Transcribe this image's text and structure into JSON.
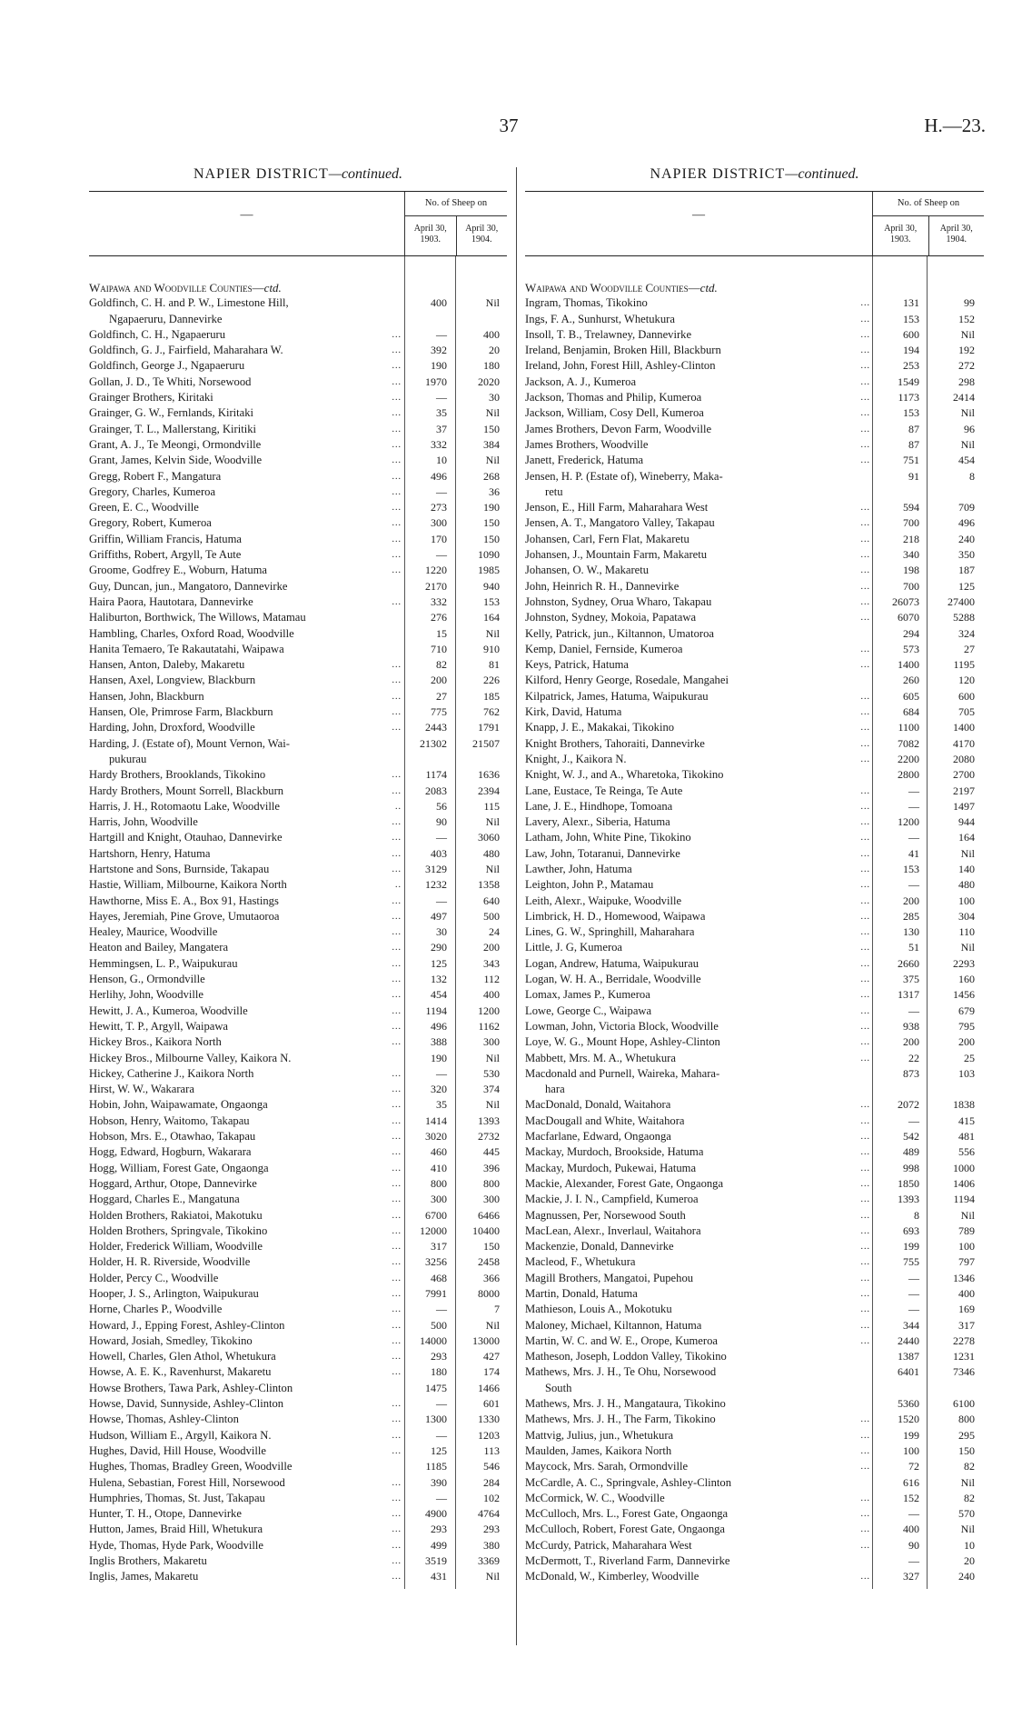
{
  "page_number": "37",
  "report_ref": "H.—23.",
  "columns": [
    {
      "title": "NAPIER DISTRICT",
      "title_suffix": "—continued.",
      "header": {
        "blank": "—",
        "group": "No. of Sheep on",
        "col1": "April 30, 1903.",
        "col2": "April 30, 1904."
      },
      "section": {
        "label": "Waipawa and Woodville Counties—",
        "suffix": "ctd."
      },
      "rows": [
        [
          "Goldfinch, C. H. and P. W., Limestone Hill,",
          "400",
          "Nil",
          "",
          "Ngapaeruru, Dannevirke"
        ],
        [
          "Goldfinch, C. H., Ngapaeruru",
          "—",
          "400",
          "..."
        ],
        [
          "Goldfinch, G. J., Fairfield, Maharahara W.",
          "392",
          "20",
          "..."
        ],
        [
          "Goldfinch, George J., Ngapaeruru",
          "190",
          "180",
          "..."
        ],
        [
          "Gollan, J. D., Te Whiti, Norsewood",
          "1970",
          "2020",
          "..."
        ],
        [
          "Grainger Brothers, Kiritaki",
          "—",
          "30",
          "..."
        ],
        [
          "Grainger, G. W., Fernlands, Kiritaki",
          "35",
          "Nil",
          "..."
        ],
        [
          "Grainger, T. L., Mallerstang, Kiritiki",
          "37",
          "150",
          "..."
        ],
        [
          "Grant, A. J., Te Meongi, Ormondville",
          "332",
          "384",
          "..."
        ],
        [
          "Grant, James, Kelvin Side, Woodville",
          "10",
          "Nil",
          "..."
        ],
        [
          "Gregg, Robert F., Mangatura",
          "496",
          "268",
          "..."
        ],
        [
          "Gregory, Charles, Kumeroa",
          "—",
          "36",
          "..."
        ],
        [
          "Green, E. C., Woodville",
          "273",
          "190",
          "..."
        ],
        [
          "Gregory, Robert, Kumeroa",
          "300",
          "150",
          "..."
        ],
        [
          "Griffin, William Francis, Hatuma",
          "170",
          "150",
          "..."
        ],
        [
          "Griffiths, Robert, Argyll, Te Aute",
          "—",
          "1090",
          "..."
        ],
        [
          "Groome, Godfrey E., Woburn, Hatuma",
          "1220",
          "1985",
          "..."
        ],
        [
          "Guy, Duncan, jun., Mangatoro, Dannevirke",
          "2170",
          "940",
          ""
        ],
        [
          "Haira Paora, Hautotara, Dannevirke",
          "332",
          "153",
          "..."
        ],
        [
          "Haliburton, Borthwick, The Willows, Matamau",
          "276",
          "164",
          ""
        ],
        [
          "Hambling, Charles, Oxford Road, Woodville",
          "15",
          "Nil",
          ""
        ],
        [
          "Hanita Temaero, Te Rakautatahi, Waipawa",
          "710",
          "910",
          ""
        ],
        [
          "Hansen, Anton, Daleby, Makaretu",
          "82",
          "81",
          "..."
        ],
        [
          "Hansen, Axel, Longview, Blackburn",
          "200",
          "226",
          "..."
        ],
        [
          "Hansen, John, Blackburn",
          "27",
          "185",
          "..."
        ],
        [
          "Hansen, Ole, Primrose Farm, Blackburn",
          "775",
          "762",
          "..."
        ],
        [
          "Harding, John, Droxford, Woodville",
          "2443",
          "1791",
          "..."
        ],
        [
          "Harding, J. (Estate of), Mount Vernon, Wai-",
          "21302",
          "21507",
          "",
          "pukurau"
        ],
        [
          "Hardy Brothers, Brooklands, Tikokino",
          "1174",
          "1636",
          "..."
        ],
        [
          "Hardy Brothers, Mount Sorrell, Blackburn",
          "2083",
          "2394",
          "..."
        ],
        [
          "Harris, J. H., Rotomaotu Lake, Woodville",
          "56",
          "115",
          ".."
        ],
        [
          "Harris, John, Woodville",
          "90",
          "Nil",
          "..."
        ],
        [
          "Hartgill and Knight, Otauhao, Dannevirke",
          "—",
          "3060",
          "..."
        ],
        [
          "Hartshorn, Henry, Hatuma",
          "403",
          "480",
          "..."
        ],
        [
          "Hartstone and Sons, Burnside, Takapau",
          "3129",
          "Nil",
          "..."
        ],
        [
          "Hastie, William, Milbourne, Kaikora North",
          "1232",
          "1358",
          ".."
        ],
        [
          "Hawthorne, Miss E. A., Box 91, Hastings",
          "—",
          "640",
          "..."
        ],
        [
          "Hayes, Jeremiah, Pine Grove, Umutaoroa",
          "497",
          "500",
          "..."
        ],
        [
          "Healey, Maurice, Woodville",
          "30",
          "24",
          "..."
        ],
        [
          "Heaton and Bailey, Mangatera",
          "290",
          "200",
          "..."
        ],
        [
          "Hemmingsen, L. P., Waipukurau",
          "125",
          "343",
          "..."
        ],
        [
          "Henson, G., Ormondville",
          "132",
          "112",
          "..."
        ],
        [
          "Herlihy, John, Woodville",
          "454",
          "400",
          "..."
        ],
        [
          "Hewitt, J. A., Kumeroa, Woodville",
          "1194",
          "1200",
          "..."
        ],
        [
          "Hewitt, T. P., Argyll, Waipawa",
          "496",
          "1162",
          "..."
        ],
        [
          "Hickey Bros., Kaikora North",
          "388",
          "300",
          "..."
        ],
        [
          "Hickey Bros., Milbourne Valley, Kaikora N.",
          "190",
          "Nil",
          ""
        ],
        [
          "Hickey, Catherine J., Kaikora North",
          "—",
          "530",
          "..."
        ],
        [
          "Hirst, W. W., Wakarara",
          "320",
          "374",
          "..."
        ],
        [
          "Hobin, John, Waipawamate, Ongaonga",
          "35",
          "Nil",
          "..."
        ],
        [
          "Hobson, Henry, Waitomo, Takapau",
          "1414",
          "1393",
          "..."
        ],
        [
          "Hobson, Mrs. E., Otawhao, Takapau",
          "3020",
          "2732",
          "..."
        ],
        [
          "Hogg, Edward, Hogburn, Wakarara",
          "460",
          "445",
          "..."
        ],
        [
          "Hogg, William, Forest Gate, Ongaonga",
          "410",
          "396",
          "..."
        ],
        [
          "Hoggard, Arthur, Otope, Dannevirke",
          "800",
          "800",
          "..."
        ],
        [
          "Hoggard, Charles E., Mangatuna",
          "300",
          "300",
          "..."
        ],
        [
          "Holden Brothers, Rakiatoi, Makotuku",
          "6700",
          "6466",
          "..."
        ],
        [
          "Holden Brothers, Springvale, Tikokino",
          "12000",
          "10400",
          "..."
        ],
        [
          "Holder, Frederick William, Woodville",
          "317",
          "150",
          "..."
        ],
        [
          "Holder, H. R. Riverside, Woodville",
          "3256",
          "2458",
          "..."
        ],
        [
          "Holder, Percy C., Woodville",
          "468",
          "366",
          "..."
        ],
        [
          "Hooper, J. S., Arlington, Waipukurau",
          "7991",
          "8000",
          "..."
        ],
        [
          "Horne, Charles P., Woodville",
          "—",
          "7",
          "..."
        ],
        [
          "Howard, J., Epping Forest, Ashley-Clinton",
          "500",
          "Nil",
          "..."
        ],
        [
          "Howard, Josiah, Smedley, Tikokino",
          "14000",
          "13000",
          "..."
        ],
        [
          "Howell, Charles, Glen Athol, Whetukura",
          "293",
          "427",
          "..."
        ],
        [
          "Howse, A. E. K., Ravenhurst, Makaretu",
          "180",
          "174",
          "..."
        ],
        [
          "Howse Brothers, Tawa Park, Ashley-Clinton",
          "1475",
          "1466",
          ""
        ],
        [
          "Howse, David, Sunnyside, Ashley-Clinton",
          "—",
          "601",
          "..."
        ],
        [
          "Howse, Thomas, Ashley-Clinton",
          "1300",
          "1330",
          "..."
        ],
        [
          "Hudson, William E., Argyll, Kaikora N.",
          "—",
          "1203",
          "..."
        ],
        [
          "Hughes, David, Hill House, Woodville",
          "125",
          "113",
          "..."
        ],
        [
          "Hughes, Thomas, Bradley Green, Woodville",
          "1185",
          "546",
          ""
        ],
        [
          "Hulena, Sebastian, Forest Hill, Norsewood",
          "390",
          "284",
          "..."
        ],
        [
          "Humphries, Thomas, St. Just, Takapau",
          "—",
          "102",
          "..."
        ],
        [
          "Hunter, T. H., Otope, Dannevirke",
          "4900",
          "4764",
          "..."
        ],
        [
          "Hutton, James, Braid Hill, Whetukura",
          "293",
          "293",
          "..."
        ],
        [
          "Hyde, Thomas, Hyde Park, Woodville",
          "499",
          "380",
          "..."
        ],
        [
          "Inglis Brothers, Makaretu",
          "3519",
          "3369",
          "..."
        ],
        [
          "Inglis, James, Makaretu",
          "431",
          "Nil",
          "..."
        ]
      ]
    },
    {
      "title": "NAPIER DISTRICT",
      "title_suffix": "—continued.",
      "header": {
        "blank": "—",
        "group": "No. of Sheep on",
        "col1": "April 30, 1903.",
        "col2": "April 30, 1904."
      },
      "section": {
        "label": "Waipawa and Woodville Counties—",
        "suffix": "ctd."
      },
      "rows": [
        [
          "Ingram, Thomas, Tikokino",
          "131",
          "99",
          "..."
        ],
        [
          "Ings, F. A., Sunhurst, Whetukura",
          "153",
          "152",
          "..."
        ],
        [
          "Insoll, T. B., Trelawney, Dannevirke",
          "600",
          "Nil",
          "..."
        ],
        [
          "Ireland, Benjamin, Broken Hill, Blackburn",
          "194",
          "192",
          "..."
        ],
        [
          "Ireland, John, Forest Hill, Ashley-Clinton",
          "253",
          "272",
          "..."
        ],
        [
          "Jackson, A. J., Kumeroa",
          "1549",
          "298",
          "..."
        ],
        [
          "Jackson, Thomas and Philip, Kumeroa",
          "1173",
          "2414",
          "..."
        ],
        [
          "Jackson, William, Cosy Dell, Kumeroa",
          "153",
          "Nil",
          "..."
        ],
        [
          "James Brothers, Devon Farm, Woodville",
          "87",
          "96",
          "..."
        ],
        [
          "James Brothers, Woodville",
          "87",
          "Nil",
          "..."
        ],
        [
          "Janett, Frederick, Hatuma",
          "751",
          "454",
          "..."
        ],
        [
          "Jensen, H. P. (Estate of), Wineberry, Maka-",
          "91",
          "8",
          "",
          "retu"
        ],
        [
          "Jenson, E., Hill Farm, Maharahara West",
          "594",
          "709",
          "..."
        ],
        [
          "Jensen, A. T., Mangatoro Valley, Takapau",
          "700",
          "496",
          "..."
        ],
        [
          "Johansen, Carl, Fern Flat, Makaretu",
          "218",
          "240",
          "..."
        ],
        [
          "Johansen, J., Mountain Farm, Makaretu",
          "340",
          "350",
          "..."
        ],
        [
          "Johansen, O. W., Makaretu",
          "198",
          "187",
          "..."
        ],
        [
          "John, Heinrich R. H., Dannevirke",
          "700",
          "125",
          "..."
        ],
        [
          "Johnston, Sydney, Orua Wharo, Takapau",
          "26073",
          "27400",
          "..."
        ],
        [
          "Johnston, Sydney, Mokoia, Papatawa",
          "6070",
          "5288",
          "..."
        ],
        [
          "Kelly, Patrick, jun., Kiltannon, Umatoroa",
          "294",
          "324",
          ""
        ],
        [
          "Kemp, Daniel, Fernside, Kumeroa",
          "573",
          "27",
          "..."
        ],
        [
          "Keys, Patrick, Hatuma",
          "1400",
          "1195",
          "..."
        ],
        [
          "Kilford, Henry George, Rosedale, Mangahei",
          "260",
          "120",
          ""
        ],
        [
          "Kilpatrick, James, Hatuma, Waipukurau",
          "605",
          "600",
          "..."
        ],
        [
          "Kirk, David, Hatuma",
          "684",
          "705",
          "..."
        ],
        [
          "Knapp, J. E., Makakai, Tikokino",
          "1100",
          "1400",
          "..."
        ],
        [
          "Knight Brothers, Tahoraiti, Dannevirke",
          "7082",
          "4170",
          "..."
        ],
        [
          "Knight, J., Kaikora N.",
          "2200",
          "2080",
          "..."
        ],
        [
          "Knight, W. J., and A., Wharetoka, Tikokino",
          "2800",
          "2700",
          ""
        ],
        [
          "Lane, Eustace, Te Reinga, Te Aute",
          "—",
          "2197",
          "..."
        ],
        [
          "Lane, J. E., Hindhope, Tomoana",
          "—",
          "1497",
          "..."
        ],
        [
          "Lavery, Alexr., Siberia, Hatuma",
          "1200",
          "944",
          "..."
        ],
        [
          "Latham, John, White Pine, Tikokino",
          "—",
          "164",
          "..."
        ],
        [
          "Law, John, Totaranui, Dannevirke",
          "41",
          "Nil",
          "..."
        ],
        [
          "Lawther, John, Hatuma",
          "153",
          "140",
          "..."
        ],
        [
          "Leighton, John P., Matamau",
          "—",
          "480",
          "..."
        ],
        [
          "Leith, Alexr., Waipuke, Woodville",
          "200",
          "100",
          "..."
        ],
        [
          "Limbrick, H. D., Homewood, Waipawa",
          "285",
          "304",
          "..."
        ],
        [
          "Lines, G. W., Springhill, Maharahara",
          "130",
          "110",
          "..."
        ],
        [
          "Little, J. G, Kumeroa",
          "51",
          "Nil",
          "..."
        ],
        [
          "Logan, Andrew, Hatuma, Waipukurau",
          "2660",
          "2293",
          "..."
        ],
        [
          "Logan, W. H. A., Berridale, Woodville",
          "375",
          "160",
          "..."
        ],
        [
          "Lomax, James P., Kumeroa",
          "1317",
          "1456",
          "..."
        ],
        [
          "Lowe, George C., Waipawa",
          "—",
          "679",
          "..."
        ],
        [
          "Lowman, John, Victoria Block, Woodville",
          "938",
          "795",
          "..."
        ],
        [
          "Loye, W. G., Mount Hope, Ashley-Clinton",
          "200",
          "200",
          "..."
        ],
        [
          "Mabbett, Mrs. M. A., Whetukura",
          "22",
          "25",
          "..."
        ],
        [
          "Macdonald and Purnell, Waireka, Mahara-",
          "873",
          "103",
          "",
          "hara"
        ],
        [
          "MacDonald, Donald, Waitahora",
          "2072",
          "1838",
          "..."
        ],
        [
          "MacDougall and White, Waitahora",
          "—",
          "415",
          "..."
        ],
        [
          "Macfarlane, Edward, Ongaonga",
          "542",
          "481",
          "..."
        ],
        [
          "Mackay, Murdoch, Brookside, Hatuma",
          "489",
          "556",
          "..."
        ],
        [
          "Mackay, Murdoch, Pukewai, Hatuma",
          "998",
          "1000",
          "..."
        ],
        [
          "Mackie, Alexander, Forest Gate, Ongaonga",
          "1850",
          "1406",
          "..."
        ],
        [
          "Mackie, J. I. N., Campfield, Kumeroa",
          "1393",
          "1194",
          "..."
        ],
        [
          "Magnussen, Per, Norsewood South",
          "8",
          "Nil",
          "..."
        ],
        [
          "MacLean, Alexr., Inverlaul, Waitahora",
          "693",
          "789",
          "..."
        ],
        [
          "Mackenzie, Donald, Dannevirke",
          "199",
          "100",
          "..."
        ],
        [
          "Macleod, F., Whetukura",
          "755",
          "797",
          "..."
        ],
        [
          "Magill Brothers, Mangatoi, Pupehou",
          "—",
          "1346",
          "..."
        ],
        [
          "Martin, Donald, Hatuma",
          "—",
          "400",
          "..."
        ],
        [
          "Mathieson, Louis A., Mokotuku",
          "—",
          "169",
          "..."
        ],
        [
          "Maloney, Michael, Kiltannon, Hatuma",
          "344",
          "317",
          "..."
        ],
        [
          "Martin, W. C. and W. E., Orope, Kumeroa",
          "2440",
          "2278",
          "..."
        ],
        [
          "Matheson, Joseph, Loddon Valley, Tikokino",
          "1387",
          "1231",
          ""
        ],
        [
          "Mathews, Mrs. J. H., Te Ohu, Norsewood",
          "6401",
          "7346",
          "",
          "South"
        ],
        [
          "Mathews, Mrs. J. H., Mangataura, Tikokino",
          "5360",
          "6100",
          ""
        ],
        [
          "Mathews, Mrs. J. H., The Farm, Tikokino",
          "1520",
          "800",
          "..."
        ],
        [
          "Mattvig, Julius, jun., Whetukura",
          "199",
          "295",
          "..."
        ],
        [
          "Maulden, James, Kaikora North",
          "100",
          "150",
          "..."
        ],
        [
          "Maycock, Mrs. Sarah, Ormondville",
          "72",
          "82",
          "..."
        ],
        [
          "McCardle, A. C., Springvale, Ashley-Clinton",
          "616",
          "Nil",
          ""
        ],
        [
          "McCormick, W. C., Woodville",
          "152",
          "82",
          "..."
        ],
        [
          "McCulloch, Mrs. L., Forest Gate, Ongaonga",
          "—",
          "570",
          "..."
        ],
        [
          "McCulloch, Robert, Forest Gate, Ongaonga",
          "400",
          "Nil",
          "..."
        ],
        [
          "McCurdy, Patrick, Maharahara West",
          "90",
          "10",
          "..."
        ],
        [
          "McDermott, T., Riverland Farm, Dannevirke",
          "—",
          "20",
          ""
        ],
        [
          "McDonald, W., Kimberley, Woodville",
          "327",
          "240",
          "..."
        ]
      ]
    }
  ]
}
